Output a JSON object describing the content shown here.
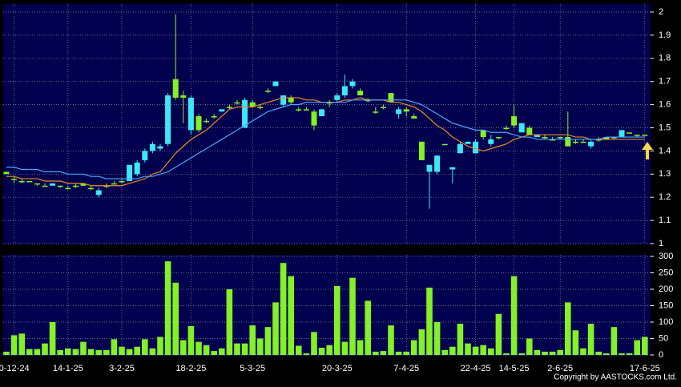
{
  "chart_data": {
    "type": "candlestick",
    "categories": [
      null,
      "0-12-24",
      null,
      null,
      null,
      null,
      null,
      null,
      "14-1-25",
      null,
      null,
      null,
      null,
      null,
      null,
      "3-2-25",
      null,
      null,
      null,
      null,
      null,
      null,
      null,
      null,
      "18-2-25",
      null,
      null,
      null,
      null,
      null,
      null,
      null,
      "5-3-25",
      null,
      null,
      null,
      null,
      null,
      null,
      null,
      null,
      null,
      null,
      "20-3-25",
      null,
      null,
      null,
      null,
      null,
      null,
      null,
      null,
      "7-4-25",
      null,
      null,
      null,
      null,
      null,
      null,
      null,
      null,
      "22-4-25",
      null,
      null,
      null,
      null,
      "14-5-25",
      null,
      null,
      null,
      null,
      null,
      "2-6-25",
      null,
      null,
      null,
      null,
      null,
      null,
      null,
      null,
      null,
      null,
      "17-6-25"
    ],
    "open": [
      1.31,
      1.28,
      1.27,
      1.27,
      1.26,
      1.25,
      1.25,
      1.25,
      1.24,
      1.25,
      1.26,
      1.24,
      1.21,
      1.25,
      1.26,
      1.27,
      1.27,
      1.3,
      1.36,
      1.4,
      1.41,
      1.43,
      1.71,
      1.64,
      1.49,
      1.55,
      1.53,
      1.55,
      1.57,
      1.59,
      1.61,
      1.5,
      1.61,
      1.59,
      1.66,
      1.68,
      1.6,
      1.63,
      1.58,
      1.58,
      1.57,
      1.55,
      1.61,
      1.62,
      1.64,
      1.68,
      1.66,
      1.62,
      1.57,
      1.59,
      1.65,
      1.56,
      1.58,
      1.55,
      1.44,
      1.31,
      1.31,
      1.43,
      1.32,
      1.39,
      1.43,
      1.39,
      1.49,
      1.43,
      1.46,
      1.5,
      1.55,
      1.48,
      1.5,
      1.46,
      1.46,
      1.45,
      1.46,
      1.46,
      1.44,
      1.44,
      1.42,
      1.45,
      1.46,
      1.46,
      1.46,
      1.48,
      1.47,
      1.47
    ],
    "high": [
      1.31,
      1.29,
      1.28,
      1.27,
      1.26,
      1.26,
      1.26,
      1.25,
      1.25,
      1.26,
      1.26,
      1.25,
      1.24,
      1.26,
      1.27,
      1.28,
      1.34,
      1.36,
      1.41,
      1.44,
      1.43,
      1.65,
      1.99,
      1.66,
      1.64,
      1.56,
      1.54,
      1.56,
      1.58,
      1.6,
      1.62,
      1.63,
      1.62,
      1.6,
      1.67,
      1.7,
      1.64,
      1.64,
      1.59,
      1.59,
      1.58,
      1.58,
      1.62,
      1.65,
      1.73,
      1.71,
      1.67,
      1.63,
      1.59,
      1.6,
      1.65,
      1.59,
      1.59,
      1.56,
      1.44,
      1.34,
      1.38,
      1.43,
      1.33,
      1.44,
      1.44,
      1.45,
      1.49,
      1.47,
      1.46,
      1.51,
      1.6,
      1.52,
      1.51,
      1.47,
      1.47,
      1.46,
      1.46,
      1.57,
      1.45,
      1.45,
      1.45,
      1.46,
      1.46,
      1.46,
      1.49,
      1.48,
      1.47,
      1.47
    ],
    "low": [
      1.3,
      1.26,
      1.26,
      1.27,
      1.25,
      1.25,
      1.25,
      1.24,
      1.24,
      1.24,
      1.25,
      1.23,
      1.2,
      1.24,
      1.26,
      1.26,
      1.27,
      1.29,
      1.35,
      1.39,
      1.4,
      1.42,
      1.62,
      1.52,
      1.47,
      1.48,
      1.52,
      1.54,
      1.57,
      1.58,
      1.6,
      1.5,
      1.59,
      1.58,
      1.65,
      1.68,
      1.59,
      1.6,
      1.57,
      1.58,
      1.49,
      1.55,
      1.59,
      1.61,
      1.63,
      1.67,
      1.64,
      1.61,
      1.56,
      1.58,
      1.61,
      1.54,
      1.55,
      1.54,
      1.36,
      1.15,
      1.3,
      1.43,
      1.26,
      1.39,
      1.43,
      1.39,
      1.45,
      1.42,
      1.45,
      1.49,
      1.5,
      1.48,
      1.47,
      1.46,
      1.45,
      1.45,
      1.45,
      1.42,
      1.43,
      1.44,
      1.41,
      1.44,
      1.45,
      1.45,
      1.46,
      1.48,
      1.46,
      1.47
    ],
    "close": [
      1.3,
      1.28,
      1.27,
      1.27,
      1.26,
      1.25,
      1.26,
      1.25,
      1.24,
      1.25,
      1.25,
      1.24,
      1.23,
      1.25,
      1.26,
      1.27,
      1.34,
      1.35,
      1.4,
      1.43,
      1.42,
      1.64,
      1.63,
      1.63,
      1.63,
      1.49,
      1.53,
      1.55,
      1.58,
      1.59,
      1.61,
      1.62,
      1.59,
      1.59,
      1.66,
      1.7,
      1.64,
      1.61,
      1.58,
      1.58,
      1.51,
      1.58,
      1.61,
      1.64,
      1.68,
      1.7,
      1.64,
      1.62,
      1.57,
      1.59,
      1.61,
      1.58,
      1.57,
      1.54,
      1.36,
      1.34,
      1.38,
      1.43,
      1.33,
      1.43,
      1.44,
      1.44,
      1.46,
      1.45,
      1.46,
      1.5,
      1.51,
      1.52,
      1.47,
      1.47,
      1.46,
      1.45,
      1.46,
      1.42,
      1.44,
      1.44,
      1.44,
      1.45,
      1.45,
      1.46,
      1.49,
      1.48,
      1.47,
      1.47
    ],
    "up_color": "#3ce8f8",
    "down_color": "#84f028",
    "series": [
      {
        "color": "#f08a24",
        "values": [
          1.29,
          1.29,
          1.28,
          1.28,
          1.28,
          1.27,
          1.27,
          1.27,
          1.26,
          1.26,
          1.26,
          1.25,
          1.25,
          1.25,
          1.25,
          1.25,
          1.26,
          1.27,
          1.28,
          1.3,
          1.31,
          1.35,
          1.39,
          1.42,
          1.45,
          1.47,
          1.49,
          1.52,
          1.55,
          1.58,
          1.59,
          1.59,
          1.59,
          1.6,
          1.61,
          1.62,
          1.63,
          1.63,
          1.63,
          1.62,
          1.62,
          1.61,
          1.61,
          1.61,
          1.62,
          1.62,
          1.63,
          1.62,
          1.62,
          1.62,
          1.61,
          1.61,
          1.6,
          1.59,
          1.57,
          1.54,
          1.51,
          1.49,
          1.46,
          1.44,
          1.42,
          1.41,
          1.4,
          1.41,
          1.42,
          1.43,
          1.45,
          1.46,
          1.47,
          1.47,
          1.47,
          1.47,
          1.47,
          1.47,
          1.46,
          1.46,
          1.45,
          1.45,
          1.45,
          1.45,
          1.45,
          1.45,
          1.45,
          1.45
        ]
      },
      {
        "color": "#4aa8ff",
        "values": [
          1.33,
          1.33,
          1.32,
          1.32,
          1.32,
          1.31,
          1.31,
          1.31,
          1.3,
          1.3,
          1.3,
          1.29,
          1.29,
          1.28,
          1.28,
          1.28,
          1.28,
          1.28,
          1.29,
          1.29,
          1.3,
          1.31,
          1.33,
          1.35,
          1.37,
          1.39,
          1.41,
          1.43,
          1.45,
          1.47,
          1.49,
          1.51,
          1.53,
          1.55,
          1.57,
          1.58,
          1.59,
          1.6,
          1.6,
          1.61,
          1.61,
          1.61,
          1.61,
          1.61,
          1.61,
          1.62,
          1.62,
          1.62,
          1.62,
          1.62,
          1.62,
          1.62,
          1.62,
          1.61,
          1.6,
          1.58,
          1.56,
          1.54,
          1.52,
          1.51,
          1.5,
          1.49,
          1.49,
          1.48,
          1.48,
          1.48,
          1.47,
          1.46,
          1.46,
          1.45,
          1.45,
          1.45,
          1.45,
          1.45,
          1.45,
          1.45,
          1.45,
          1.45,
          1.46,
          1.46,
          1.46,
          1.46,
          1.46,
          1.46
        ]
      }
    ],
    "ylim": [
      1,
      2
    ],
    "yticks": [
      1,
      1.1,
      1.2,
      1.3,
      1.4,
      1.5,
      1.6,
      1.7,
      1.8,
      1.9,
      2
    ],
    "grid": true,
    "volume": {
      "color": "#84f028",
      "values": [
        10,
        60,
        65,
        18,
        18,
        35,
        100,
        15,
        20,
        18,
        40,
        18,
        15,
        15,
        48,
        25,
        18,
        25,
        48,
        20,
        55,
        285,
        220,
        45,
        88,
        40,
        30,
        12,
        20,
        200,
        35,
        35,
        90,
        50,
        85,
        160,
        280,
        240,
        28,
        5,
        70,
        22,
        30,
        210,
        40,
        235,
        45,
        165,
        10,
        12,
        90,
        10,
        10,
        45,
        78,
        205,
        100,
        15,
        25,
        95,
        35,
        25,
        30,
        20,
        125,
        5,
        240,
        5,
        50,
        15,
        10,
        10,
        15,
        160,
        75,
        20,
        95,
        10,
        5,
        85,
        5,
        5,
        45,
        55
      ],
      "ylim": [
        0,
        300
      ],
      "yticks": [
        0,
        50,
        100,
        150,
        200,
        250,
        300
      ]
    },
    "copyright": "Copyright by AASTOCKS.com Ltd."
  }
}
